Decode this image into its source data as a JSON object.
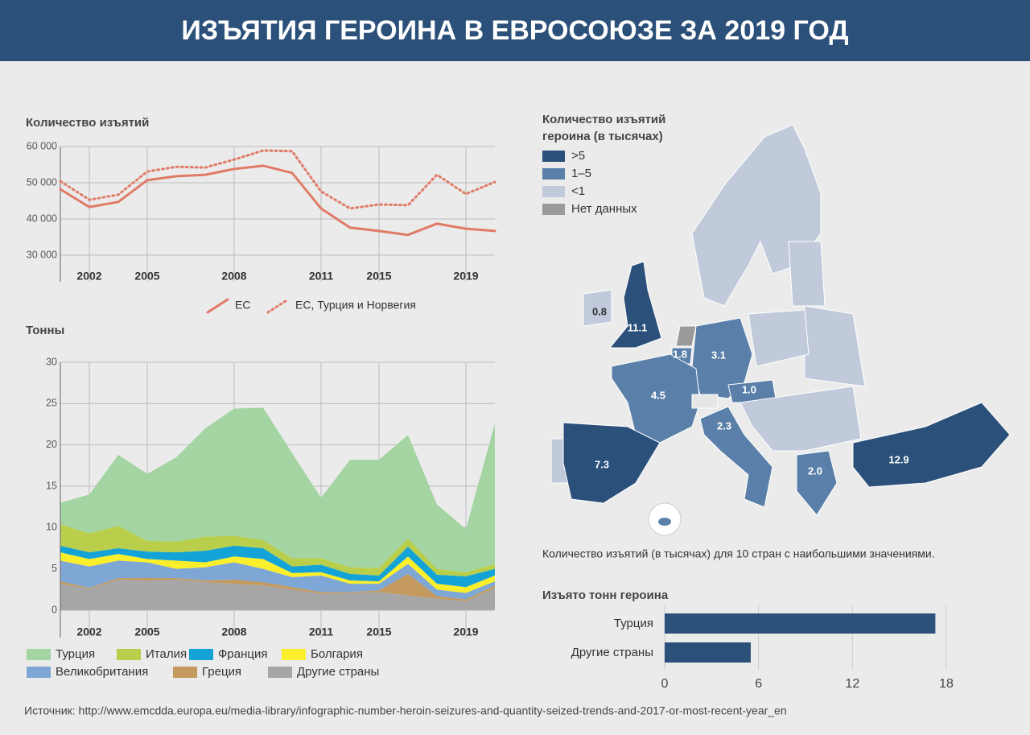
{
  "title": "ИЗЪЯТИЯ ГЕРОИНА В ЕВРОСОЮЗЕ ЗА 2019 ГОД",
  "source": "Источник: http://www.emcdda.europa.eu/media-library/infographic-number-heroin-seizures-and-quantity-seized-trends-and-2017-or-most-recent-year_en",
  "chart_data": [
    {
      "type": "line",
      "title": "Количество изъятий",
      "categories": [
        null,
        "2002",
        null,
        "2005",
        null,
        null,
        "2008",
        null,
        null,
        "2011",
        null,
        "2015",
        null,
        null,
        "2019",
        null
      ],
      "series": [
        {
          "name": "ЕС",
          "color": "#e07b67",
          "style": "solid",
          "values": [
            48200,
            43300,
            44700,
            50700,
            51800,
            52200,
            53800,
            54700,
            52700,
            42900,
            37600,
            36700,
            35600,
            38700,
            37300,
            36700
          ]
        },
        {
          "name": "ЕС, Турция и Норвегия",
          "color": "#e07b67",
          "style": "dotted",
          "values": [
            50400,
            45300,
            46700,
            53100,
            54400,
            54200,
            56400,
            58900,
            58700,
            47600,
            42900,
            44000,
            43800,
            52200,
            46900,
            50200
          ]
        }
      ],
      "ylim": [
        30000,
        60000
      ],
      "yticks": [
        {
          "value": 30000,
          "label": "30 000"
        },
        {
          "value": 40000,
          "label": "40 000"
        },
        {
          "value": 50000,
          "label": "50 000"
        },
        {
          "value": 60000,
          "label": "60 000"
        }
      ],
      "grid": true
    },
    {
      "type": "stacked_area",
      "title": "Тонны",
      "categories": [
        null,
        "2002",
        null,
        "2005",
        null,
        null,
        "2008",
        null,
        null,
        "2011",
        null,
        "2015",
        null,
        null,
        "2019",
        null
      ],
      "series": [
        {
          "name": "Турция",
          "color": "#a3d4a1",
          "values": [
            2.6,
            4.7,
            8.6,
            8.1,
            10.2,
            13.1,
            15.4,
            16.0,
            12.7,
            7.3,
            13.0,
            13.1,
            12.5,
            7.8,
            5.2,
            17.0
          ]
        },
        {
          "name": "Италия",
          "color": "#b9cf4c",
          "values": [
            2.6,
            2.3,
            2.7,
            1.3,
            1.3,
            1.7,
            1.2,
            1.0,
            1.0,
            0.8,
            0.8,
            0.9,
            1.0,
            0.7,
            0.5,
            0.6
          ]
        },
        {
          "name": "Франция",
          "color": "#14a3d6",
          "values": [
            0.8,
            0.8,
            0.7,
            0.9,
            1.0,
            1.4,
            1.3,
            1.3,
            0.8,
            0.9,
            0.8,
            0.7,
            1.2,
            1.1,
            1.3,
            0.8
          ]
        },
        {
          "name": "Болгария",
          "color": "#fbee2a",
          "values": [
            1.0,
            0.9,
            0.8,
            0.4,
            1.0,
            0.6,
            0.7,
            1.2,
            0.5,
            0.4,
            0.4,
            0.3,
            0.9,
            0.7,
            0.7,
            0.7
          ]
        },
        {
          "name": "Великобритания",
          "color": "#7fa7d6",
          "values": [
            2.5,
            2.6,
            2.1,
            1.9,
            1.1,
            1.6,
            2.1,
            1.6,
            1.2,
            2.0,
            1.0,
            0.8,
            1.2,
            0.8,
            0.8,
            0.5
          ]
        },
        {
          "name": "Греция",
          "color": "#c49a5e",
          "values": [
            0.3,
            0.1,
            0.2,
            0.3,
            0.2,
            0.2,
            0.5,
            0.4,
            0.3,
            0.2,
            0.1,
            0.2,
            2.6,
            0.3,
            0.2,
            0.3
          ]
        },
        {
          "name": "Другие страны",
          "color": "#a6a6a6",
          "values": [
            3.2,
            2.6,
            3.7,
            3.6,
            3.7,
            3.4,
            3.2,
            3.0,
            2.5,
            2.0,
            2.1,
            2.2,
            1.8,
            1.4,
            1.1,
            2.7
          ]
        }
      ],
      "ylim": [
        0,
        30
      ],
      "yticks": [
        0,
        5,
        10,
        15,
        20,
        25,
        30
      ],
      "grid": true
    },
    {
      "type": "hbar",
      "title": "Изъято тонн героина",
      "categories": [
        "Турция",
        "Другие страны"
      ],
      "values": [
        17.3,
        5.5
      ],
      "color": "#2b5079",
      "xlim": [
        0,
        18
      ],
      "xticks": [
        0,
        6,
        12,
        18
      ],
      "grid": true
    }
  ],
  "map": {
    "legend_title": [
      "Количество изъятий",
      "героина (в тысячах)"
    ],
    "legend": [
      {
        "label": ">5",
        "color": "#2b5079"
      },
      {
        "label": "1–5",
        "color": "#5a7fa8"
      },
      {
        "label": "<1",
        "color": "#c0cadb"
      },
      {
        "label": "Нет данных",
        "color": "#9a9a9a"
      }
    ],
    "values": [
      0.8,
      11.1,
      1.8,
      3.1,
      4.5,
      1.0,
      2.3,
      7.3,
      2.0,
      12.9
    ],
    "value_labels": [
      "0.8",
      "11.1",
      "1.8",
      "3.1",
      "4.5",
      "1.0",
      "2.3",
      "7.3",
      "2.0",
      "12.9"
    ],
    "caption": "Количество изъятий (в тысячах) для 10 стран с наибольшими значениями."
  }
}
